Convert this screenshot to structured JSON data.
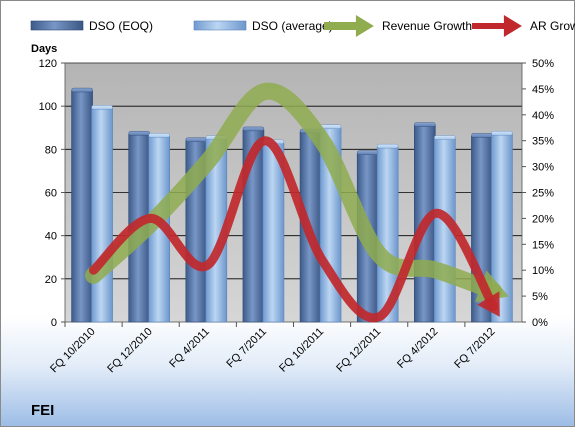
{
  "chart_data": {
    "type": "bar",
    "title": "",
    "company": "FEI",
    "ylabel": "Days",
    "ylim": [
      0,
      120
    ],
    "yticks": [
      "0",
      "20",
      "40",
      "60",
      "80",
      "100",
      "120"
    ],
    "y2lim": [
      0,
      0.5
    ],
    "y2ticks": [
      "0%",
      "5%",
      "10%",
      "15%",
      "20%",
      "25%",
      "30%",
      "35%",
      "40%",
      "45%",
      "50%"
    ],
    "grid": true,
    "legend_position": "top",
    "categories": [
      "FQ 10/2010",
      "FQ 12/2010",
      "FQ 4/2011",
      "FQ 7/2011",
      "FQ 10/2011",
      "FQ 12/2011",
      "FQ 4/2012",
      "FQ 7/2012"
    ],
    "series": [
      {
        "name": "DSO (EOQ)",
        "kind": "bar",
        "axis": "left",
        "color": "#4f6fa0",
        "values": [
          107,
          87,
          84,
          89,
          88,
          78,
          91,
          86
        ]
      },
      {
        "name": "DSO (average)",
        "kind": "bar",
        "axis": "left",
        "color": "#8fb6e3",
        "values": [
          99,
          86,
          85,
          83,
          90,
          81,
          85,
          87
        ]
      },
      {
        "name": "Revenue Growth",
        "kind": "arrow",
        "axis": "right",
        "color": "#8fac4f",
        "values": [
          0.09,
          0.19,
          0.31,
          0.445,
          0.35,
          0.13,
          0.1,
          0.06
        ]
      },
      {
        "name": "AR Growth",
        "kind": "arrow",
        "axis": "right",
        "color": "#c0282c",
        "values": [
          0.1,
          0.2,
          0.11,
          0.35,
          0.12,
          0.01,
          0.21,
          0.03
        ]
      }
    ]
  }
}
